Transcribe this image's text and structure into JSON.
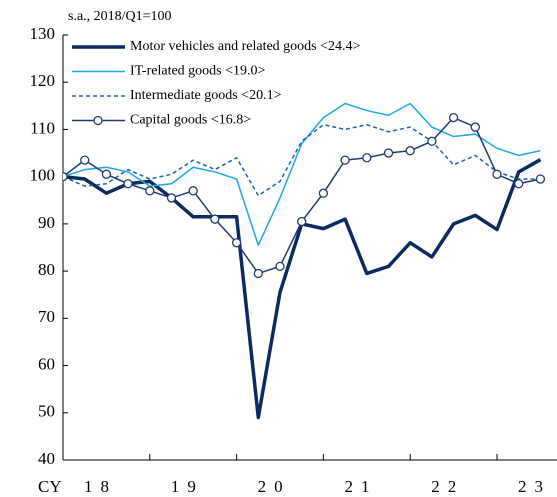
{
  "chart_data": {
    "type": "line",
    "subtitle": "s.a., 2018/Q1=100",
    "xlabel": "CY",
    "categories": [
      null,
      "18",
      null,
      null,
      null,
      "19",
      null,
      null,
      null,
      "20",
      null,
      null,
      null,
      "21",
      null,
      null,
      null,
      "22",
      null,
      null,
      null,
      "23",
      null
    ],
    "series": [
      {
        "name": "Motor vehicles and related goods <24.4>",
        "color": "#0b2a5e",
        "width": 3.5,
        "dash": false,
        "marker": false,
        "values": [
          100,
          99.5,
          96.5,
          98.5,
          99,
          95.5,
          91.5,
          91.5,
          91.5,
          49,
          75.5,
          90,
          89,
          91,
          79.5,
          81,
          86,
          83,
          90,
          91.8,
          88.8,
          101,
          103.6
        ]
      },
      {
        "name": "IT-related goods <19.0>",
        "color": "#1aa7e8",
        "width": 1.5,
        "dash": false,
        "marker": false,
        "values": [
          100,
          101.5,
          102,
          101,
          98,
          98.5,
          102,
          101,
          99.5,
          85.5,
          95.5,
          107,
          112.5,
          115.5,
          114,
          113,
          115.5,
          110.5,
          108.5,
          109,
          106,
          104.5,
          105.5
        ]
      },
      {
        "name": "Intermediate goods <20.1>",
        "color": "#1f5fa8",
        "width": 1.5,
        "dash": true,
        "marker": false,
        "values": [
          100,
          98,
          98.5,
          101.5,
          99.5,
          100.5,
          103.5,
          101.5,
          104,
          96,
          99,
          107.5,
          111,
          110,
          111,
          109.5,
          110.5,
          107.5,
          102.5,
          104.5,
          101,
          99.5,
          99.5
        ]
      },
      {
        "name": "Capital goods <16.8>",
        "color": "#1f3a6e",
        "width": 1.5,
        "dash": false,
        "marker": true,
        "values": [
          100,
          103.5,
          100.5,
          98.5,
          97,
          95.5,
          97,
          91,
          86,
          79.5,
          81,
          90.5,
          96.5,
          103.5,
          104,
          105,
          105.5,
          107.5,
          112.5,
          110.5,
          100.5,
          98.5,
          99.5
        ]
      }
    ],
    "ylim": [
      40,
      130
    ],
    "yticks": [
      40,
      50,
      60,
      70,
      80,
      90,
      100,
      110,
      120,
      130
    ],
    "grid": false
  }
}
